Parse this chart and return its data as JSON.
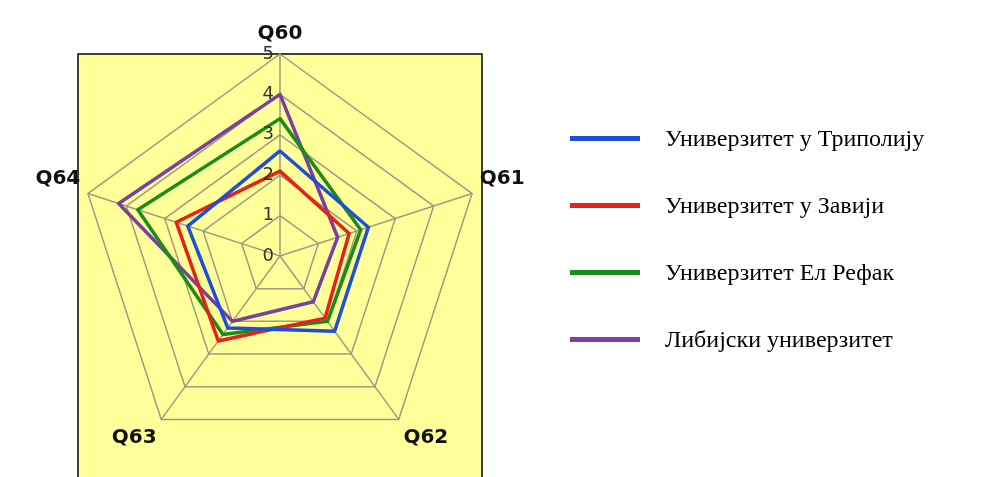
{
  "chart_data": {
    "type": "radar",
    "categories": [
      "Q60",
      "Q61",
      "Q62",
      "Q63",
      "Q64"
    ],
    "series": [
      {
        "name": "Универзитет у Триполију",
        "color": "#1f4fd6",
        "values": [
          2.6,
          2.3,
          2.3,
          2.2,
          2.4
        ]
      },
      {
        "name": "Универзитет у Завији",
        "color": "#e8201a",
        "values": [
          2.1,
          1.8,
          1.9,
          2.6,
          2.7
        ]
      },
      {
        "name": "Универзитет Ел Рефак",
        "color": "#1a8c1a",
        "values": [
          3.4,
          2.1,
          2.0,
          2.4,
          3.7
        ]
      },
      {
        "name": "Либијски универзитет",
        "color": "#7b3fa0",
        "values": [
          4.0,
          1.5,
          1.4,
          2.0,
          4.2
        ]
      }
    ],
    "ylim": [
      0,
      5
    ],
    "yticks": [
      0,
      1,
      2,
      3,
      4,
      5
    ],
    "grid": true,
    "legend": "right",
    "marker": "none",
    "line_style": "solid"
  }
}
